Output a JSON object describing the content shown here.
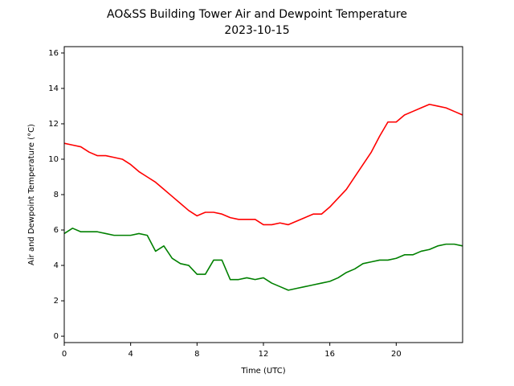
{
  "chart_data": {
    "type": "line",
    "title": "AO&SS Building Tower Air and Dewpoint Temperature",
    "subtitle": "2023-10-15",
    "x_label": "Time (UTC)",
    "y_label": "Air and Dewpoint Temperature (°C)",
    "x": [
      0,
      0.5,
      1,
      1.5,
      2,
      2.5,
      3,
      3.5,
      4,
      4.5,
      5,
      5.5,
      6,
      6.5,
      7,
      7.5,
      8,
      8.5,
      9,
      9.5,
      10,
      10.5,
      11,
      11.5,
      12,
      12.5,
      13,
      13.5,
      14,
      14.5,
      15,
      15.5,
      16,
      16.5,
      17,
      17.5,
      18,
      18.5,
      19,
      19.5,
      20,
      20.5,
      21,
      21.5,
      22,
      22.5,
      23,
      23.5,
      24
    ],
    "series": [
      {
        "color": "#ff0000",
        "values": [
          10.9,
          10.8,
          10.7,
          10.4,
          10.2,
          10.2,
          10.1,
          10.0,
          9.7,
          9.3,
          9.0,
          8.7,
          8.3,
          7.9,
          7.5,
          7.1,
          6.8,
          7.0,
          7.0,
          6.9,
          6.7,
          6.6,
          6.6,
          6.6,
          6.3,
          6.3,
          6.4,
          6.3,
          6.5,
          6.7,
          6.9,
          6.9,
          7.3,
          7.8,
          8.3,
          9.0,
          9.7,
          10.4,
          11.3,
          12.1,
          12.1,
          12.5,
          12.7,
          12.9,
          13.1,
          13.0,
          12.9,
          12.7,
          12.5
        ]
      },
      {
        "color": "#008000",
        "values": [
          5.8,
          6.1,
          5.9,
          5.9,
          5.9,
          5.8,
          5.7,
          5.7,
          5.7,
          5.8,
          5.7,
          4.8,
          5.1,
          4.4,
          4.1,
          4.0,
          3.5,
          3.5,
          4.3,
          4.3,
          3.2,
          3.2,
          3.3,
          3.2,
          3.3,
          3.0,
          2.8,
          2.6,
          2.7,
          2.8,
          2.9,
          3.0,
          3.1,
          3.3,
          3.6,
          3.8,
          4.1,
          4.2,
          4.3,
          4.3,
          4.4,
          4.6,
          4.6,
          4.8,
          4.9,
          5.1,
          5.2,
          5.2,
          5.1
        ]
      }
    ],
    "xlim": [
      0,
      24
    ],
    "xticks": [
      0,
      4,
      8,
      12,
      16,
      20
    ],
    "ylim": [
      -0.36,
      16.36
    ],
    "yticks": [
      0,
      2,
      4,
      6,
      8,
      10,
      12,
      14,
      16
    ],
    "grid": false
  }
}
